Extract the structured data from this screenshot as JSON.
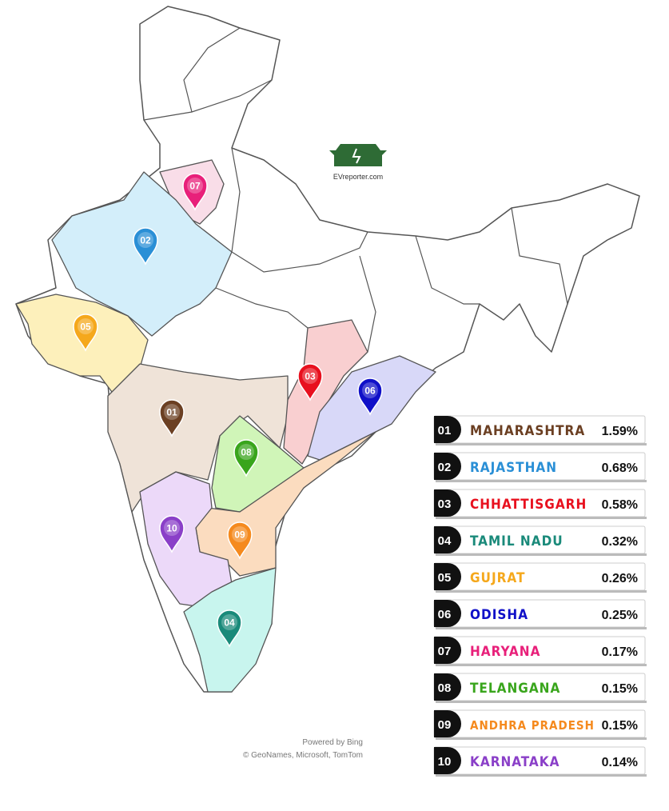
{
  "logo": {
    "text": "EVreporter.com"
  },
  "attribution": {
    "line1": "Powered by Bing",
    "line2": "© GeoNames, Microsoft, TomTom"
  },
  "states": [
    {
      "rank": "01",
      "name": "MAHARASHTRA",
      "share": "1.59%",
      "color": "#6b3f22",
      "fill": "#efe3d8"
    },
    {
      "rank": "02",
      "name": "RAJASTHAN",
      "share": "0.68%",
      "color": "#2a8fd6",
      "fill": "#d3eefa"
    },
    {
      "rank": "03",
      "name": "CHHATTISGARH",
      "share": "0.58%",
      "color": "#e8101e",
      "fill": "#f9cfd0"
    },
    {
      "rank": "04",
      "name": "TAMIL NADU",
      "share": "0.32%",
      "color": "#1a8a7a",
      "fill": "#c8f5ee"
    },
    {
      "rank": "05",
      "name": "GUJRAT",
      "share": "0.26%",
      "color": "#f5a81c",
      "fill": "#fdf0bb"
    },
    {
      "rank": "06",
      "name": "ODISHA",
      "share": "0.25%",
      "color": "#1010c8",
      "fill": "#d8d8f8"
    },
    {
      "rank": "07",
      "name": "HARYANA",
      "share": "0.17%",
      "color": "#e8207a",
      "fill": "#f9dde8"
    },
    {
      "rank": "08",
      "name": "TELANGANA",
      "share": "0.15%",
      "color": "#39a51c",
      "fill": "#d0f5b8"
    },
    {
      "rank": "09",
      "name": "ANDHRA PRADESH",
      "share": "0.15%",
      "color": "#f58a1e",
      "fill": "#fbdcbf"
    },
    {
      "rank": "10",
      "name": "KARNATAKA",
      "share": "0.14%",
      "color": "#8a3fc8",
      "fill": "#ecd9f9"
    }
  ]
}
